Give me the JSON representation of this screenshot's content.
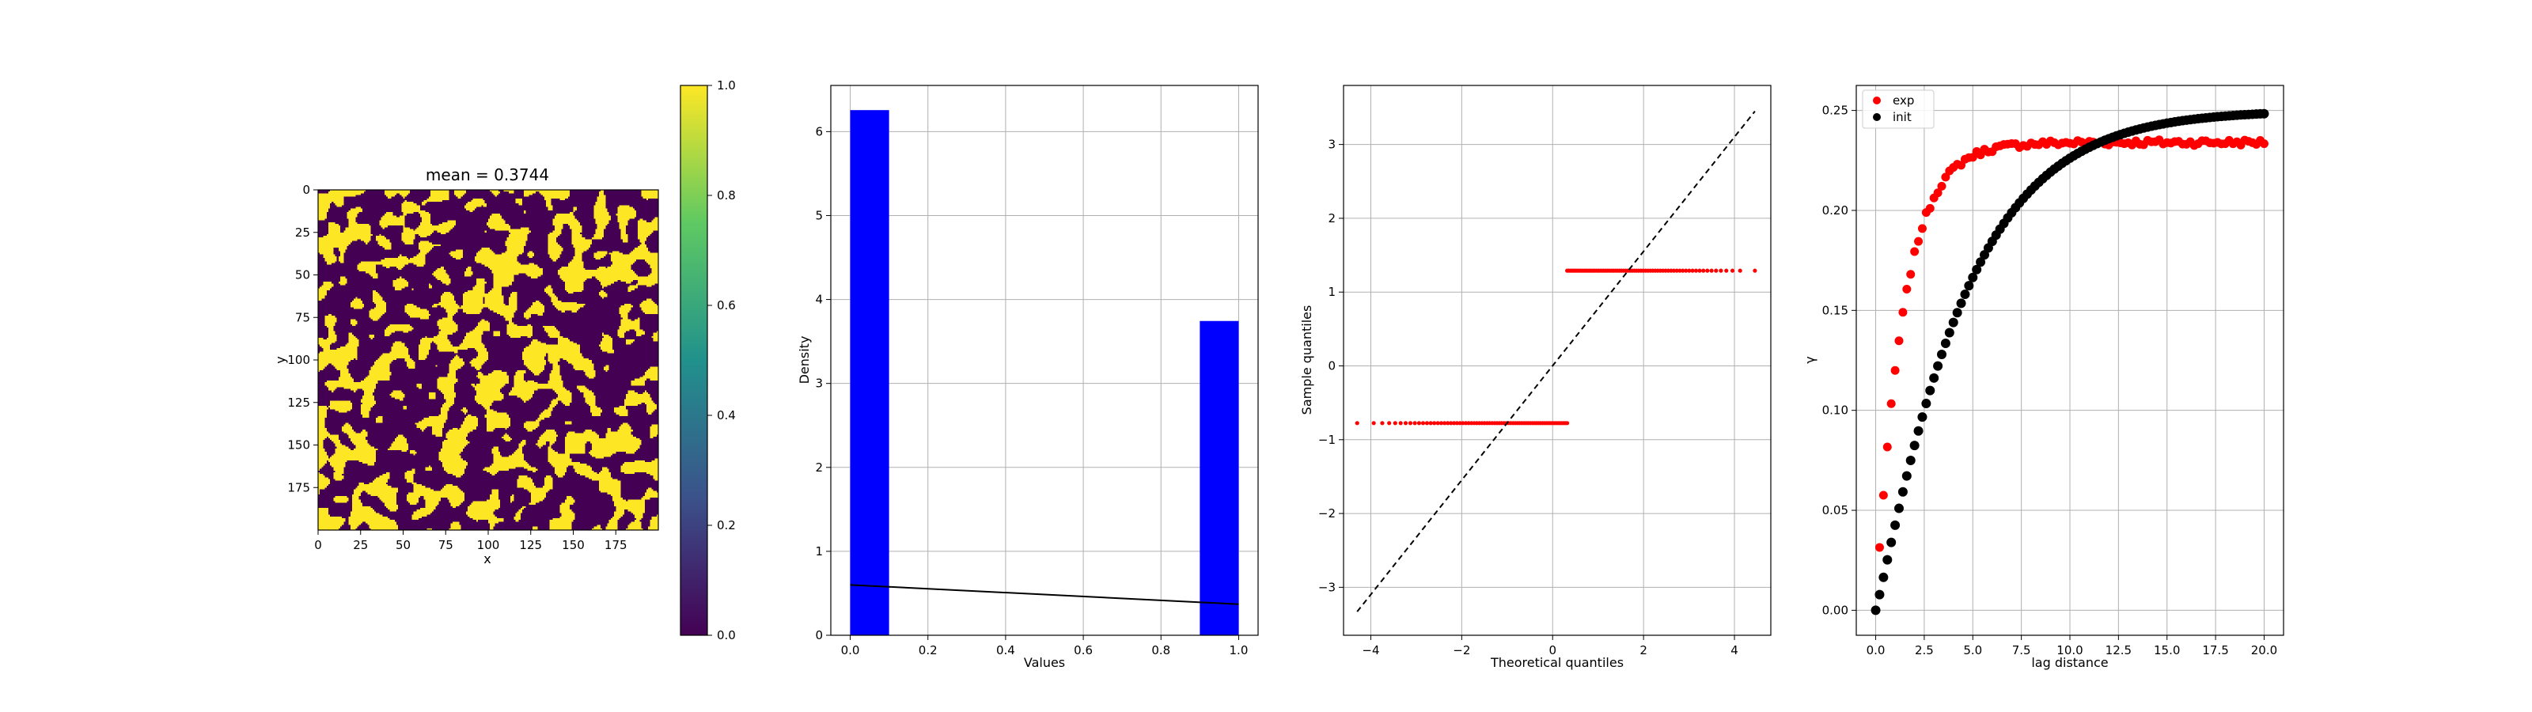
{
  "chart_data": [
    {
      "type": "heatmap",
      "title": "mean = 0.3744",
      "xlabel": "x",
      "ylabel": "y",
      "grid_size": [
        200,
        200
      ],
      "mean": 0.3744,
      "xlim": [
        0,
        200
      ],
      "ylim": [
        200,
        0
      ],
      "xticks": [
        0,
        25,
        50,
        75,
        100,
        125,
        150,
        175
      ],
      "yticks": [
        0,
        25,
        50,
        75,
        100,
        125,
        150,
        175
      ],
      "colormap": [
        "#440154",
        "#3b528b",
        "#21918c",
        "#5ec962",
        "#fde725"
      ],
      "colorbar": {
        "vmin": 0.0,
        "vmax": 1.0,
        "ticks": [
          "0.0",
          "0.2",
          "0.4",
          "0.6",
          "0.8",
          "1.0"
        ]
      }
    },
    {
      "type": "bar",
      "xlabel": "Values",
      "ylabel": "Density",
      "xlim": [
        -0.05,
        1.05
      ],
      "ylim": [
        0,
        6.55
      ],
      "bin_edges": [
        0.0,
        0.1,
        0.2,
        0.3,
        0.4,
        0.5,
        0.6,
        0.7,
        0.8,
        0.9,
        1.0
      ],
      "values": [
        6.256,
        0,
        0,
        0,
        0,
        0,
        0,
        0,
        0,
        3.744
      ],
      "bar_color": "#0000ff",
      "line": {
        "x": [
          0.0,
          1.0
        ],
        "y": [
          0.6,
          0.37
        ],
        "color": "#000000"
      },
      "xticks": [
        "0.0",
        "0.2",
        "0.4",
        "0.6",
        "0.8",
        "1.0"
      ],
      "yticks": [
        "0",
        "1",
        "2",
        "3",
        "4",
        "5",
        "6"
      ],
      "grid": true
    },
    {
      "type": "scatter",
      "xlabel": "Theoretical quantiles",
      "ylabel": "Sample quantiles",
      "xlim": [
        -4.6,
        4.8
      ],
      "ylim": [
        -3.65,
        3.8
      ],
      "low_segment": {
        "x": [
          -4.3,
          0.32
        ],
        "y": -0.775
      },
      "high_segment": {
        "x": [
          0.32,
          4.45
        ],
        "y": 1.29
      },
      "reference_line": {
        "x": [
          -4.3,
          4.45
        ],
        "y": [
          -3.33,
          3.45
        ],
        "style": "dashed",
        "color": "#000000"
      },
      "point_color": "#ff0000",
      "xticks": [
        "−4",
        "−2",
        "0",
        "2",
        "4"
      ],
      "yticks": [
        "−3",
        "−2",
        "−1",
        "0",
        "1",
        "2",
        "3"
      ],
      "grid": true
    },
    {
      "type": "scatter",
      "xlabel": "lag distance",
      "ylabel": "γ",
      "xlim": [
        -1.0,
        21.0
      ],
      "ylim": [
        -0.0125,
        0.2625
      ],
      "series": [
        {
          "name": "exp",
          "color": "#ff0000",
          "sill": 0.234,
          "range_scale": 1.4
        },
        {
          "name": "init",
          "color": "#000000",
          "sill": 0.25,
          "range_scale": 4.6
        }
      ],
      "lags": {
        "start": 0.0,
        "end": 20.0,
        "step": 0.2
      },
      "xticks": [
        "0.0",
        "2.5",
        "5.0",
        "7.5",
        "10.0",
        "12.5",
        "15.0",
        "17.5",
        "20.0"
      ],
      "yticks": [
        "0.00",
        "0.05",
        "0.10",
        "0.15",
        "0.20",
        "0.25"
      ],
      "legend": "top-left",
      "grid": true
    }
  ]
}
